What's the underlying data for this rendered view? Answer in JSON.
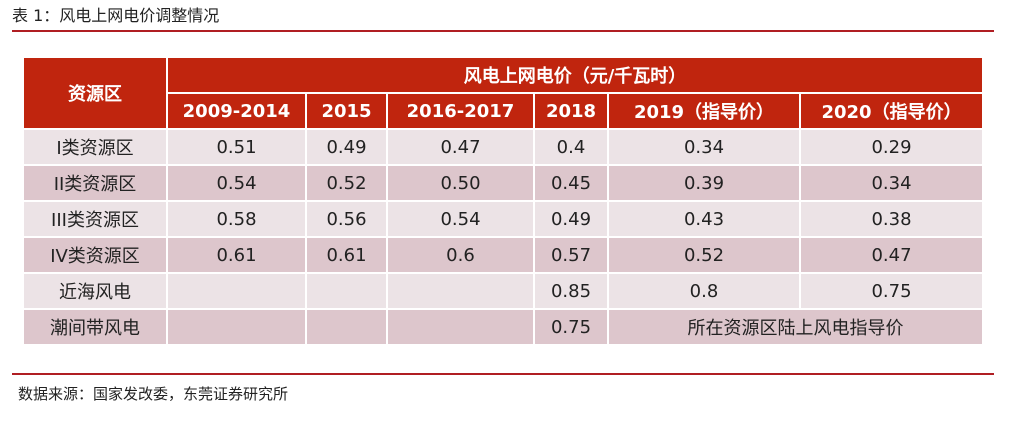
{
  "caption": "表 1：风电上网电价调整情况",
  "table": {
    "region_header": "资源区",
    "price_header": "风电上网电价（元/千瓦时）",
    "years": [
      "2009-2014",
      "2015",
      "2016-2017",
      "2018",
      "2019（指导价）",
      "2020（指导价）"
    ],
    "rows": [
      {
        "label": "I类资源区",
        "cells": [
          "0.51",
          "0.49",
          "0.47",
          "0.4",
          "0.34",
          "0.29"
        ]
      },
      {
        "label": "II类资源区",
        "cells": [
          "0.54",
          "0.52",
          "0.50",
          "0.45",
          "0.39",
          "0.34"
        ]
      },
      {
        "label": "III类资源区",
        "cells": [
          "0.58",
          "0.56",
          "0.54",
          "0.49",
          "0.43",
          "0.38"
        ]
      },
      {
        "label": "IV类资源区",
        "cells": [
          "0.61",
          "0.61",
          "0.6",
          "0.57",
          "0.52",
          "0.47"
        ]
      },
      {
        "label": "近海风电",
        "cells": [
          "",
          "",
          "",
          "0.85",
          "0.8",
          "0.75"
        ]
      },
      {
        "label": "潮间带风电",
        "cells": [
          "",
          "",
          "",
          "0.75"
        ],
        "merged_note": "所在资源区陆上风电指导价"
      }
    ]
  },
  "source": "数据来源：国家发改委，东莞证券研究所",
  "colors": {
    "header_bg": "#c0250e",
    "row_light": "#ece3e6",
    "row_dark": "#ddc6cc",
    "rule": "#b01e23"
  }
}
